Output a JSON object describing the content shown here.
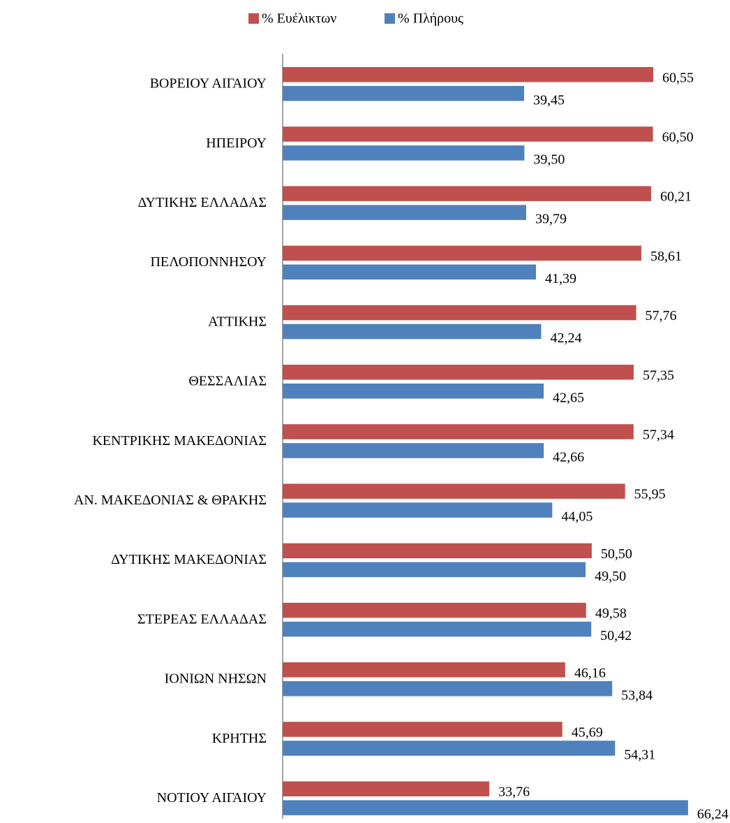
{
  "chart_data": {
    "type": "bar",
    "orientation": "horizontal",
    "categories": [
      "ΒΟΡΕΙΟΥ ΑΙΓΑΙΟΥ",
      "ΗΠΕΙΡΟΥ",
      "ΔΥΤΙΚΗΣ ΕΛΛΑΔΑΣ",
      "ΠΕΛΟΠΟΝΝΗΣΟΥ",
      "ΑΤΤΙΚΗΣ",
      "ΘΕΣΣΑΛΙΑΣ",
      "ΚΕΝΤΡΙΚΗΣ ΜΑΚΕΔΟΝΙΑΣ",
      "ΑΝ. ΜΑΚΕΔΟΝΙΑΣ & ΘΡΑΚΗΣ",
      "ΔΥΤΙΚΗΣ ΜΑΚΕΔΟΝΙΑΣ",
      "ΣΤΕΡΕΑΣ ΕΛΛΑΔΑΣ",
      "ΙΟΝΙΩΝ ΝΗΣΩΝ",
      "ΚΡΗΤΗΣ",
      "ΝΟΤΙΟΥ ΑΙΓΑΙΟΥ"
    ],
    "series": [
      {
        "name": "% Ευέλικτων",
        "color": "#c0504d",
        "values": [
          60.55,
          60.5,
          60.21,
          58.61,
          57.76,
          57.35,
          57.34,
          55.95,
          50.5,
          49.58,
          46.16,
          45.69,
          33.76
        ],
        "value_labels": [
          "60,55",
          "60,50",
          "60,21",
          "58,61",
          "57,76",
          "57,35",
          "57,34",
          "55,95",
          "50,50",
          "49,58",
          "46,16",
          "45,69",
          "33,76"
        ]
      },
      {
        "name": "% Πλήρους",
        "color": "#4f81bd",
        "values": [
          39.45,
          39.5,
          39.79,
          41.39,
          42.24,
          42.65,
          42.66,
          44.05,
          49.5,
          50.42,
          53.84,
          54.31,
          66.24
        ],
        "value_labels": [
          "39,45",
          "39,50",
          "39,79",
          "41,39",
          "42,24",
          "42,65",
          "42,66",
          "44,05",
          "49,50",
          "50,42",
          "53,84",
          "54,31",
          "66,24"
        ]
      }
    ],
    "legend": "top"
  }
}
